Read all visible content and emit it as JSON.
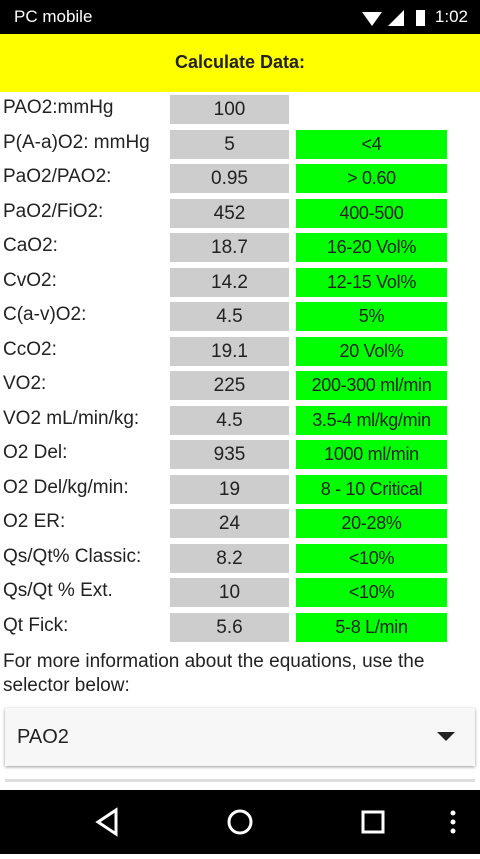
{
  "status_bar": {
    "carrier": "PC mobile",
    "time": "1:02"
  },
  "header": {
    "title": "Calculate Data:"
  },
  "rows": [
    {
      "label": "PAO2:mmHg",
      "value": "100"
    },
    {
      "label": "P(A-a)O2: mmHg",
      "value": "5",
      "normal": "<4"
    },
    {
      "label": "PaO2/PAO2:",
      "value": "0.95",
      "normal": "> 0.60"
    },
    {
      "label": "PaO2/FiO2:",
      "value": "452",
      "normal": "400-500"
    },
    {
      "label": "CaO2:",
      "value": "18.7",
      "normal": "16-20 Vol%"
    },
    {
      "label": "CvO2:",
      "value": "14.2",
      "normal": "12-15 Vol%"
    },
    {
      "label": "C(a-v)O2:",
      "value": "4.5",
      "normal": "5%"
    },
    {
      "label": "CcO2:",
      "value": "19.1",
      "normal": "20 Vol%"
    },
    {
      "label": "VO2:",
      "value": "225",
      "normal": "200-300 ml/min"
    },
    {
      "label": "VO2 mL/min/kg:",
      "value": "4.5",
      "normal": "3.5-4 ml/kg/min"
    },
    {
      "label": "O2 Del:",
      "value": "935",
      "normal": "1000 ml/min"
    },
    {
      "label": "O2 Del/kg/min:",
      "value": "19",
      "normal": "8 - 10 Critical"
    },
    {
      "label": "O2 ER:",
      "value": "24",
      "normal": "20-28%"
    },
    {
      "label": "Qs/Qt% Classic:",
      "value": "8.2",
      "normal": "<10%"
    },
    {
      "label": "Qs/Qt % Ext.",
      "value": "10",
      "normal": "<10%"
    },
    {
      "label": "Qt Fick:",
      "value": "5.6",
      "normal": "5-8 L/min"
    }
  ],
  "info": {
    "text": "For more information about the equations, use the selector below:"
  },
  "selector": {
    "selected": "PAO2"
  }
}
